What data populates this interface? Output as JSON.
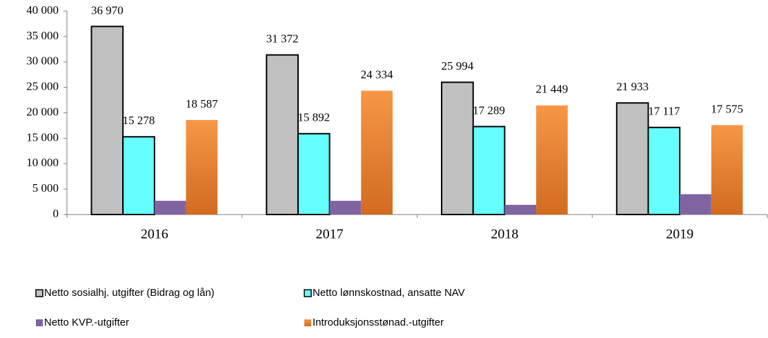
{
  "chart_data": {
    "type": "bar",
    "categories": [
      "2016",
      "2017",
      "2018",
      "2019"
    ],
    "series": [
      {
        "name": "Netto sosialhj. utgifter (Bidrag og lån)",
        "color": "#c0c0c0",
        "edgecolor": "#000000",
        "values": [
          36970,
          31372,
          25994,
          21933
        ],
        "value_labels": [
          "36 970",
          "31 372",
          "25 994",
          "21 933"
        ]
      },
      {
        "name": "Netto lønnskostnad, ansatte NAV",
        "color": "#66ffff",
        "edgecolor": "#000000",
        "values": [
          15278,
          15892,
          17289,
          17117
        ],
        "value_labels": [
          "15 278",
          "15 892",
          "17 289",
          "17 117"
        ]
      },
      {
        "name": "Netto KVP.-utgifter",
        "color": "#8064a2",
        "values": [
          2700,
          2700,
          1900,
          4000
        ]
      },
      {
        "name": "Introduksjonsstønad.-utgifter",
        "color": "#f79646",
        "gradient": true,
        "values": [
          18587,
          24334,
          21449,
          17575
        ],
        "value_labels": [
          "18 587",
          "24 334",
          "21 449",
          "17 575"
        ]
      }
    ],
    "ylim": [
      0,
      40000
    ],
    "yticks": [
      0,
      {
        "value": 5000,
        "label": "5 000"
      },
      {
        "value": 10000,
        "label": "10 000"
      },
      {
        "value": 15000,
        "label": "15 000"
      },
      {
        "value": 20000,
        "label": "20 000"
      },
      {
        "value": 25000,
        "label": "25 000"
      },
      {
        "value": 30000,
        "label": "30 000"
      },
      {
        "value": 35000,
        "label": "35 000"
      },
      {
        "value": 40000,
        "label": "40 000"
      }
    ],
    "legend": "bottom"
  }
}
